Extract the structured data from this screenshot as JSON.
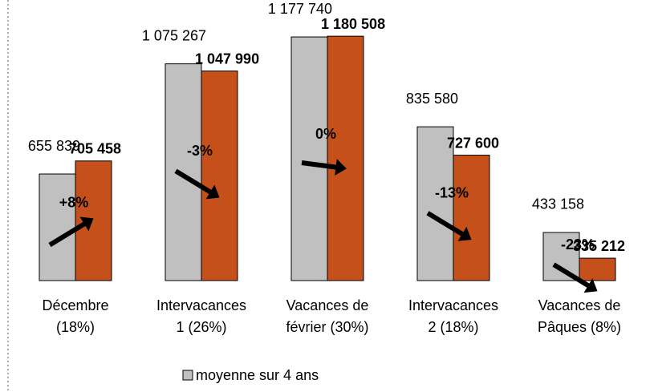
{
  "chart_data": {
    "type": "bar",
    "categories": [
      [
        "Décembre",
        "(18%)"
      ],
      [
        "Intervacances",
        "1 (26%)"
      ],
      [
        "Vacances de",
        "février (30%)"
      ],
      [
        "Intervacances",
        "2 (18%)"
      ],
      [
        "Vacances de",
        "Pâques (8%)"
      ]
    ],
    "series": [
      {
        "name": "moyenne sur 4 ans",
        "color": "#c0c0c0",
        "values": [
          655839,
          1075267,
          1177740,
          835580,
          433158
        ],
        "value_labels": [
          "655 839",
          "1 075 267",
          "1 177 740",
          "835 580",
          "433 158"
        ]
      },
      {
        "color": "#c5501a",
        "values": [
          705458,
          1047990,
          1180508,
          727600,
          335212
        ],
        "value_labels": [
          "705 458",
          "1 047 990",
          "1 180 508",
          "727 600",
          "335 212"
        ]
      }
    ],
    "changes": [
      "+8%",
      "-3%",
      "0%",
      "-13%",
      "-23%"
    ],
    "ylim": [
      250000,
      1300000
    ]
  }
}
